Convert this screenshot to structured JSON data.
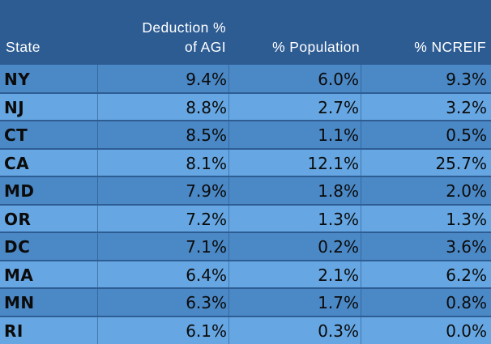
{
  "table": {
    "headers": {
      "state": "State",
      "deduction_line1": "Deduction %",
      "deduction_line2": "of AGI",
      "population": "% Population",
      "ncreif": "% NCREIF"
    },
    "rows": [
      {
        "state": "NY",
        "deduction": "9.4%",
        "population": "6.0%",
        "ncreif": "9.3%"
      },
      {
        "state": "NJ",
        "deduction": "8.8%",
        "population": "2.7%",
        "ncreif": "3.2%"
      },
      {
        "state": "CT",
        "deduction": "8.5%",
        "population": "1.1%",
        "ncreif": "0.5%"
      },
      {
        "state": "CA",
        "deduction": "8.1%",
        "population": "12.1%",
        "ncreif": "25.7%"
      },
      {
        "state": "MD",
        "deduction": "7.9%",
        "population": "1.8%",
        "ncreif": "2.0%"
      },
      {
        "state": "OR",
        "deduction": "7.2%",
        "population": "1.3%",
        "ncreif": "1.3%"
      },
      {
        "state": "DC",
        "deduction": "7.1%",
        "population": "0.2%",
        "ncreif": "3.6%"
      },
      {
        "state": "MA",
        "deduction": "6.4%",
        "population": "2.1%",
        "ncreif": "6.2%"
      },
      {
        "state": "MN",
        "deduction": "6.3%",
        "population": "1.7%",
        "ncreif": "0.8%"
      },
      {
        "state": "RI",
        "deduction": "6.1%",
        "population": "0.3%",
        "ncreif": "0.0%"
      }
    ]
  },
  "colors": {
    "header_bg": "#2d5c93",
    "row_dark": "#4b88c6",
    "row_light": "#66a7e3",
    "header_text": "#ffffff",
    "cell_text": "#0b0b0b"
  }
}
